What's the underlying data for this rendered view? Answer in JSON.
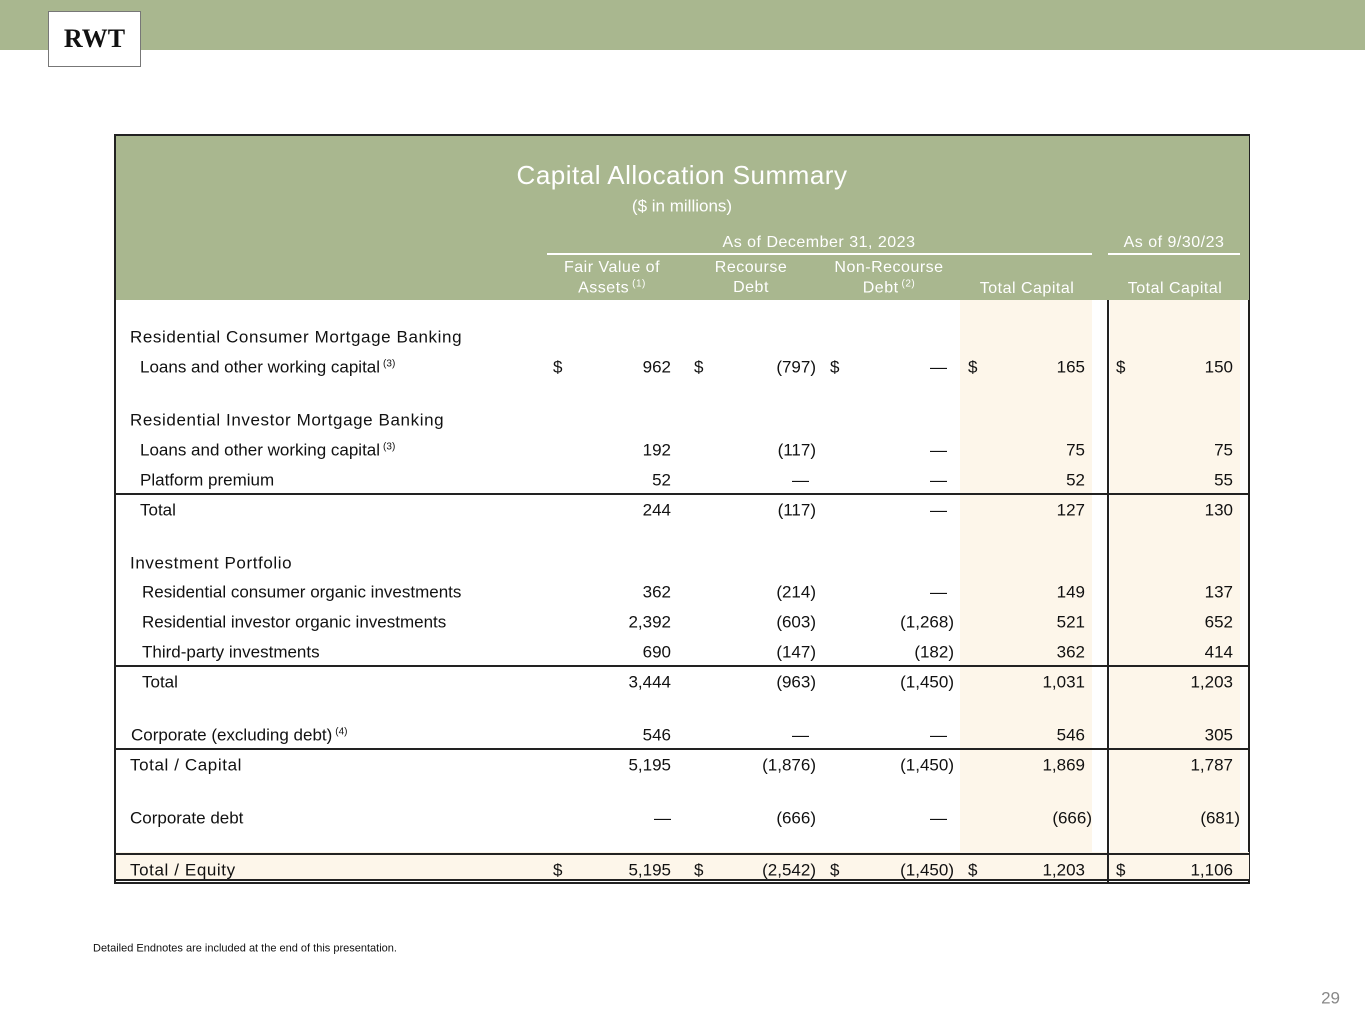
{
  "logo": "RWT",
  "table": {
    "title": "Capital Allocation Summary",
    "subtitle": "($ in millions)",
    "currency_symbol": "$",
    "group_headers": [
      "As of December 31, 2023",
      "As of 9/30/23"
    ],
    "columns": [
      {
        "lines": [
          "Fair Value of",
          "Assets"
        ],
        "note": "(1)"
      },
      {
        "lines": [
          "Recourse",
          "Debt"
        ]
      },
      {
        "lines": [
          "Non-Recourse",
          "Debt"
        ],
        "note": "(2)"
      },
      {
        "lines": [
          "Total Capital"
        ]
      },
      {
        "lines": [
          "Total Capital"
        ]
      }
    ],
    "rows": [
      {
        "kind": "section",
        "label": "Residential Consumer Mortgage Banking"
      },
      {
        "kind": "item",
        "label": "Loans and other working capital",
        "note": "(3)",
        "currency": true,
        "cells": [
          "962",
          "(797)",
          "—",
          "165",
          "150"
        ]
      },
      {
        "kind": "section",
        "label": "Residential Investor Mortgage Banking"
      },
      {
        "kind": "item",
        "label": "Loans and other working capital",
        "note": "(3)",
        "cells": [
          "192",
          "(117)",
          "—",
          "75",
          "75"
        ]
      },
      {
        "kind": "item",
        "label": "Platform premium",
        "cells": [
          "52",
          "—",
          "—",
          "52",
          "55"
        ]
      },
      {
        "kind": "total",
        "label": "Total",
        "cells": [
          "244",
          "(117)",
          "—",
          "127",
          "130"
        ]
      },
      {
        "kind": "section",
        "label": "Investment Portfolio"
      },
      {
        "kind": "item",
        "label": "Residential consumer organic investments",
        "cells": [
          "362",
          "(214)",
          "—",
          "149",
          "137"
        ]
      },
      {
        "kind": "item",
        "label": "Residential investor organic investments",
        "cells": [
          "2,392",
          "(603)",
          "(1,268)",
          "521",
          "652"
        ]
      },
      {
        "kind": "item",
        "label": "Third-party investments",
        "cells": [
          "690",
          "(147)",
          "(182)",
          "362",
          "414"
        ]
      },
      {
        "kind": "total",
        "label": "Total",
        "cells": [
          "3,444",
          "(963)",
          "(1,450)",
          "1,031",
          "1,203"
        ]
      },
      {
        "kind": "item",
        "label": "Corporate (excluding debt)",
        "note": "(4)",
        "cells": [
          "546",
          "—",
          "—",
          "546",
          "305"
        ]
      },
      {
        "kind": "grand",
        "label": "Total / Capital",
        "cells": [
          "5,195",
          "(1,876)",
          "(1,450)",
          "1,869",
          "1,787"
        ]
      },
      {
        "kind": "plain",
        "label": "Corporate debt",
        "cells": [
          "—",
          "(666)",
          "—",
          "(666)",
          "(681)"
        ]
      },
      {
        "kind": "final",
        "label": "Total / Equity",
        "currency": true,
        "cells": [
          "5,195",
          "(2,542)",
          "(1,450)",
          "1,203",
          "1,106"
        ]
      }
    ]
  },
  "footnote": "Detailed Endnotes are included at the end of this presentation.",
  "page_number": "29"
}
